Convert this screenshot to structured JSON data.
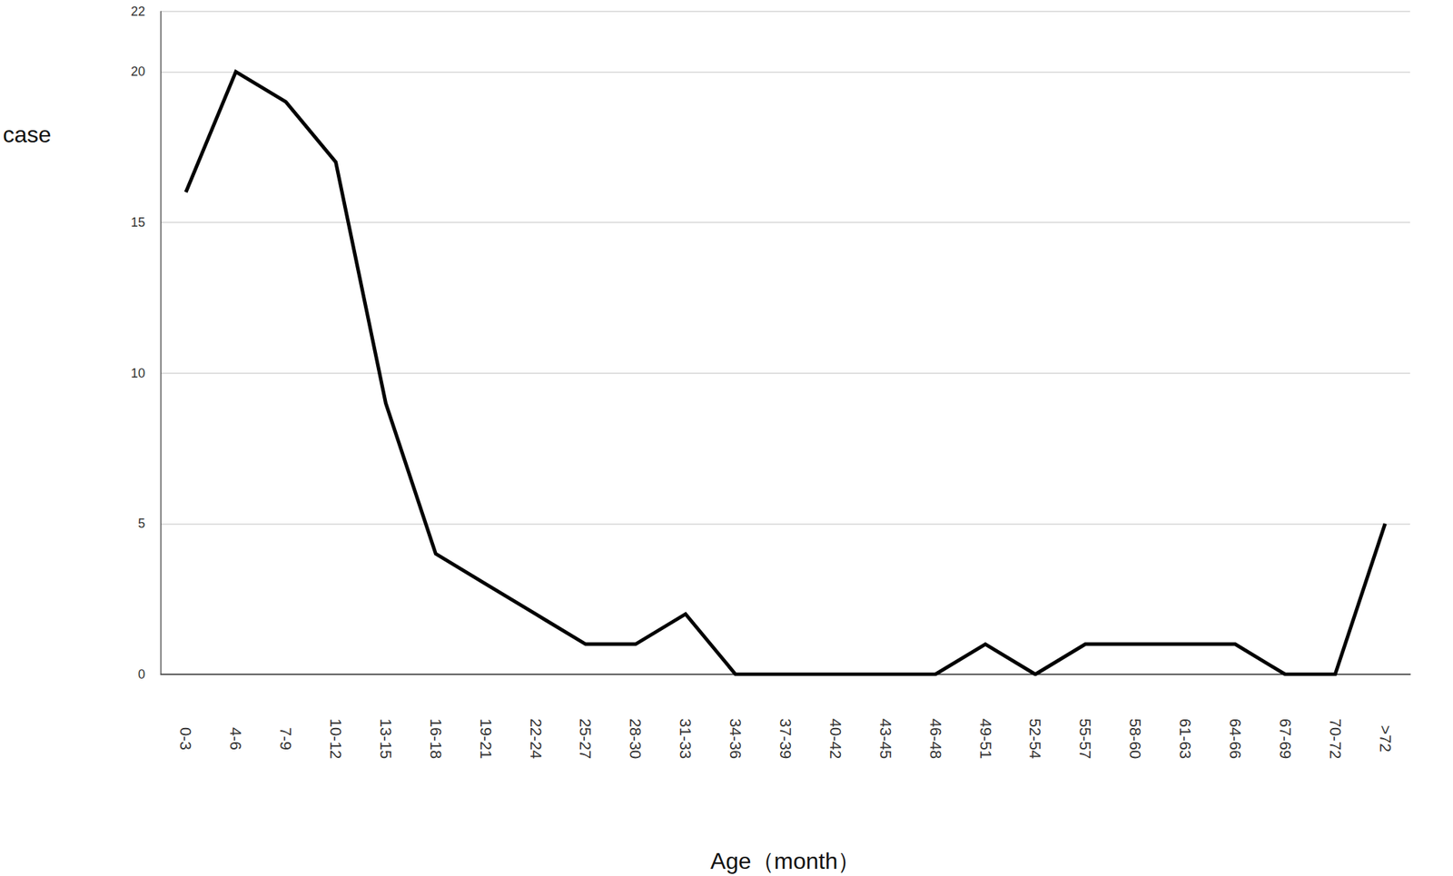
{
  "chart_data": {
    "type": "line",
    "x_label": "Age（month）",
    "y_label": "case",
    "categories": [
      "0-3",
      "4-6",
      "7-9",
      "10-12",
      "13-15",
      "16-18",
      "19-21",
      "22-24",
      "25-27",
      "28-30",
      "31-33",
      "34-36",
      "37-39",
      "40-42",
      "43-45",
      "46-48",
      "49-51",
      "52-54",
      "55-57",
      "58-60",
      "61-63",
      "64-66",
      "67-69",
      "70-72",
      ">72"
    ],
    "values": [
      16,
      20,
      19,
      17,
      9,
      4,
      3,
      2,
      1,
      1,
      2,
      0,
      0,
      0,
      0,
      0,
      1,
      0,
      1,
      1,
      1,
      1,
      0,
      0,
      5
    ],
    "color": "#000000",
    "ylim": [
      0,
      22
    ],
    "yticks": [
      0,
      5,
      10,
      15,
      20
    ],
    "grid": true
  }
}
